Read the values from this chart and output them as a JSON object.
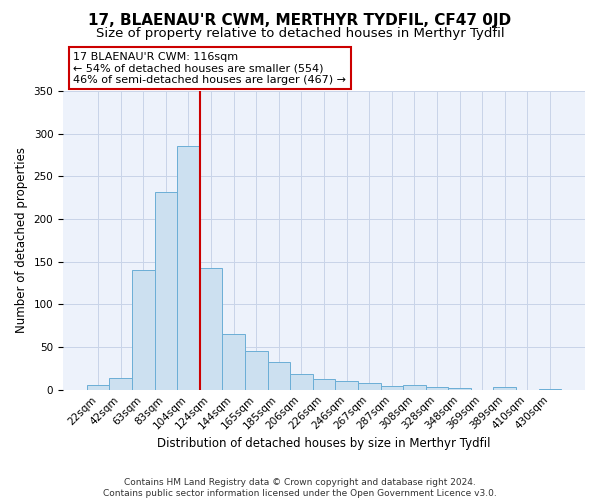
{
  "title": "17, BLAENAU'R CWM, MERTHYR TYDFIL, CF47 0JD",
  "subtitle": "Size of property relative to detached houses in Merthyr Tydfil",
  "xlabel": "Distribution of detached houses by size in Merthyr Tydfil",
  "ylabel": "Number of detached properties",
  "bar_labels": [
    "22sqm",
    "42sqm",
    "63sqm",
    "83sqm",
    "104sqm",
    "124sqm",
    "144sqm",
    "165sqm",
    "185sqm",
    "206sqm",
    "226sqm",
    "246sqm",
    "267sqm",
    "287sqm",
    "308sqm",
    "328sqm",
    "348sqm",
    "369sqm",
    "389sqm",
    "410sqm",
    "430sqm"
  ],
  "bar_heights": [
    5,
    14,
    140,
    232,
    285,
    143,
    65,
    45,
    32,
    19,
    13,
    10,
    8,
    4,
    5,
    3,
    2,
    0,
    3,
    0,
    1
  ],
  "bar_color": "#cce0f0",
  "bar_edge_color": "#6baed6",
  "vline_index": 5,
  "vline_color": "#cc0000",
  "ylim": [
    0,
    350
  ],
  "yticks": [
    0,
    50,
    100,
    150,
    200,
    250,
    300,
    350
  ],
  "annotation_title": "17 BLAENAU'R CWM: 116sqm",
  "annotation_line1": "← 54% of detached houses are smaller (554)",
  "annotation_line2": "46% of semi-detached houses are larger (467) →",
  "annotation_box_color": "#ffffff",
  "annotation_box_edge": "#cc0000",
  "footer": "Contains HM Land Registry data © Crown copyright and database right 2024.\nContains public sector information licensed under the Open Government Licence v3.0.",
  "title_fontsize": 11,
  "subtitle_fontsize": 9.5,
  "xlabel_fontsize": 8.5,
  "ylabel_fontsize": 8.5,
  "tick_fontsize": 7.5,
  "footer_fontsize": 6.5,
  "bg_color": "#edf2fb"
}
